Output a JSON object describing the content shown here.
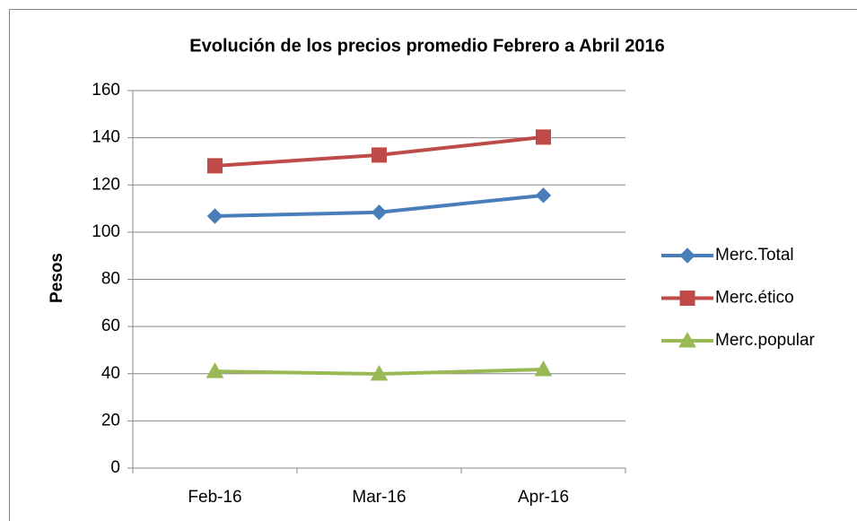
{
  "chart_data": {
    "type": "line",
    "title": "Evolución de los precios promedio Febrero a Abril 2016",
    "y_label": "Pesos",
    "categories": [
      "Feb-16",
      "Mar-16",
      "Apr-16"
    ],
    "series": [
      {
        "name": "Merc.Total",
        "color": "#4a7ebb",
        "marker": "diamond",
        "values": [
          106.8,
          108.4,
          115.6
        ]
      },
      {
        "name": "Merc.ético",
        "color": "#be4b48",
        "marker": "square",
        "values": [
          128.1,
          132.7,
          140.3
        ]
      },
      {
        "name": "Merc.popular",
        "color": "#98b954",
        "marker": "triangle",
        "values": [
          41.0,
          39.9,
          41.8
        ]
      }
    ],
    "ylim": [
      0,
      160
    ],
    "yticks": [
      0,
      20,
      40,
      60,
      80,
      100,
      120,
      140,
      160
    ],
    "grid": true,
    "legend": "right"
  }
}
